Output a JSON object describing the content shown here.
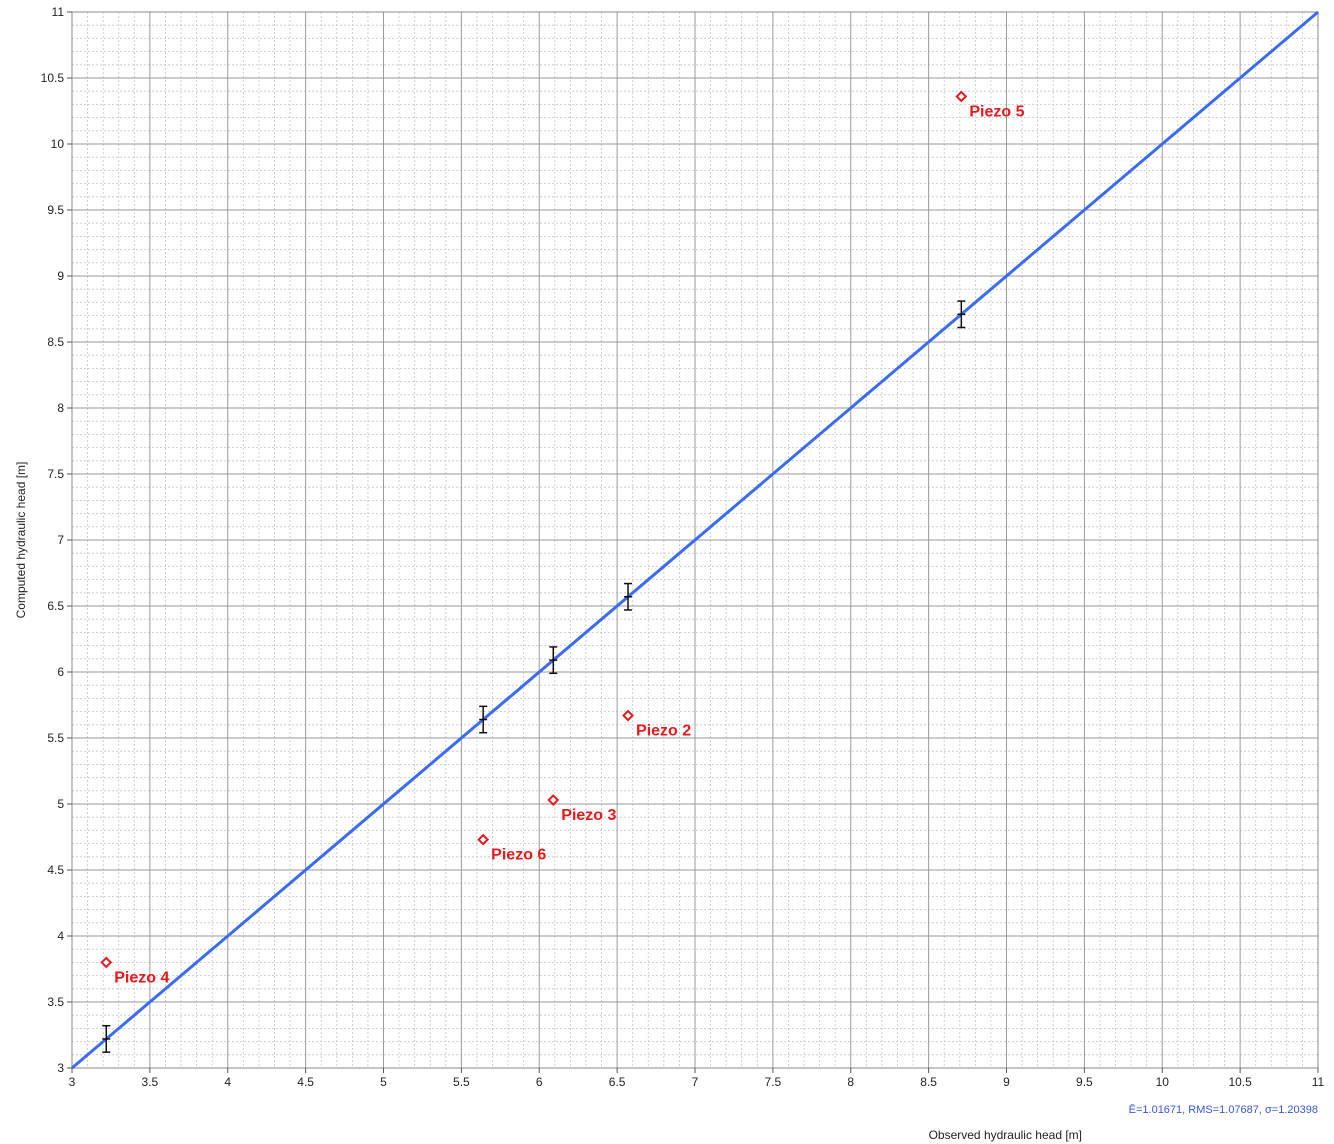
{
  "chart_data": {
    "type": "scatter",
    "xlabel": "Observed hydraulic head [m]",
    "ylabel": "Computed hydraulic head [m]",
    "xlim": [
      3,
      11
    ],
    "ylim": [
      3,
      11
    ],
    "x_ticks": [
      "3",
      "3.5",
      "4",
      "4.5",
      "5",
      "5.5",
      "6",
      "6.5",
      "7",
      "7.5",
      "8",
      "8.5",
      "9",
      "9.5",
      "10",
      "10.5",
      "11"
    ],
    "y_ticks": [
      "3",
      "3.5",
      "4",
      "4.5",
      "5",
      "5.5",
      "6",
      "6.5",
      "7",
      "7.5",
      "8",
      "8.5",
      "9",
      "9.5",
      "10",
      "10.5",
      "11"
    ],
    "grid": true,
    "identity_line": {
      "from": [
        3,
        11
      ],
      "color": "#3b6cf0"
    },
    "error_bars": [
      {
        "x": 3.22,
        "y": 3.22,
        "err": 0.1
      },
      {
        "x": 5.64,
        "y": 5.64,
        "err": 0.1
      },
      {
        "x": 6.09,
        "y": 6.09,
        "err": 0.1
      },
      {
        "x": 6.57,
        "y": 6.57,
        "err": 0.1
      },
      {
        "x": 8.71,
        "y": 8.71,
        "err": 0.1
      }
    ],
    "points": [
      {
        "label": "Piezo 4",
        "x": 3.22,
        "y": 3.8
      },
      {
        "label": "Piezo 6",
        "x": 5.64,
        "y": 4.73
      },
      {
        "label": "Piezo 3",
        "x": 6.09,
        "y": 5.03
      },
      {
        "label": "Piezo 2",
        "x": 6.57,
        "y": 5.67
      },
      {
        "label": "Piezo 5",
        "x": 8.71,
        "y": 10.36
      }
    ],
    "point_color": "#e41a1c",
    "stats_text": "Ē=1.01671, RMS=1.07687, σ=1.20398"
  }
}
